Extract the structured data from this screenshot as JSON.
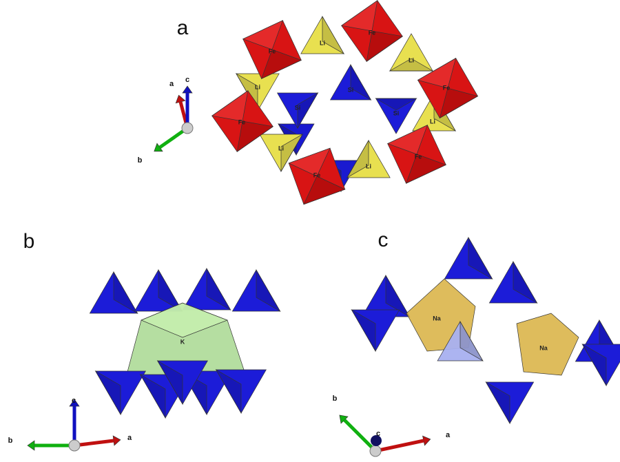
{
  "panels": [
    {
      "label": "a",
      "atoms": [
        "Fe",
        "Li",
        "Fe",
        "Li",
        "Fe",
        "Li",
        "Si",
        "Si",
        "Si",
        "Fe",
        "Li",
        "Li",
        "Li",
        "Fe",
        "Fe"
      ],
      "axes": [
        "a",
        "c",
        "b"
      ]
    },
    {
      "label": "b",
      "atoms": [
        "K"
      ],
      "axes": [
        "c",
        "b",
        "a"
      ]
    },
    {
      "label": "c",
      "atoms": [
        "Na",
        "Na"
      ],
      "axes": [
        "b",
        "c",
        "a"
      ]
    }
  ]
}
